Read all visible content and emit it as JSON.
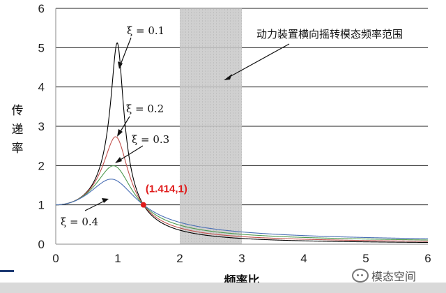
{
  "chart_data": {
    "type": "line",
    "title": "",
    "xlabel": "频率比",
    "ylabel": "传递率",
    "xlim": [
      0,
      6
    ],
    "ylim": [
      0,
      6
    ],
    "xticks": [
      "0",
      "1",
      "2",
      "3",
      "4",
      "5",
      "6"
    ],
    "yticks": [
      "0",
      "1",
      "2",
      "3",
      "4",
      "5",
      "6"
    ],
    "grid": "horizontal",
    "shaded_band": {
      "x_range": [
        2,
        3
      ],
      "label": "动力装置横向摇转模态频率范围"
    },
    "crossover_point": {
      "x": 1.414,
      "y": 1,
      "label": "(1.414,1)"
    },
    "series": [
      {
        "name": "ξ = 0.1",
        "zeta": 0.1,
        "color": "#000000",
        "peak": 5.1
      },
      {
        "name": "ξ = 0.2",
        "zeta": 0.2,
        "color": "#c0504d",
        "peak": 2.7
      },
      {
        "name": "ξ = 0.3",
        "zeta": 0.3,
        "color": "#4f9a4f",
        "peak": 2.0
      },
      {
        "name": "ξ = 0.4",
        "zeta": 0.4,
        "color": "#4a6fb5",
        "peak": 1.67
      }
    ]
  },
  "watermark": {
    "text": "模态空间"
  }
}
